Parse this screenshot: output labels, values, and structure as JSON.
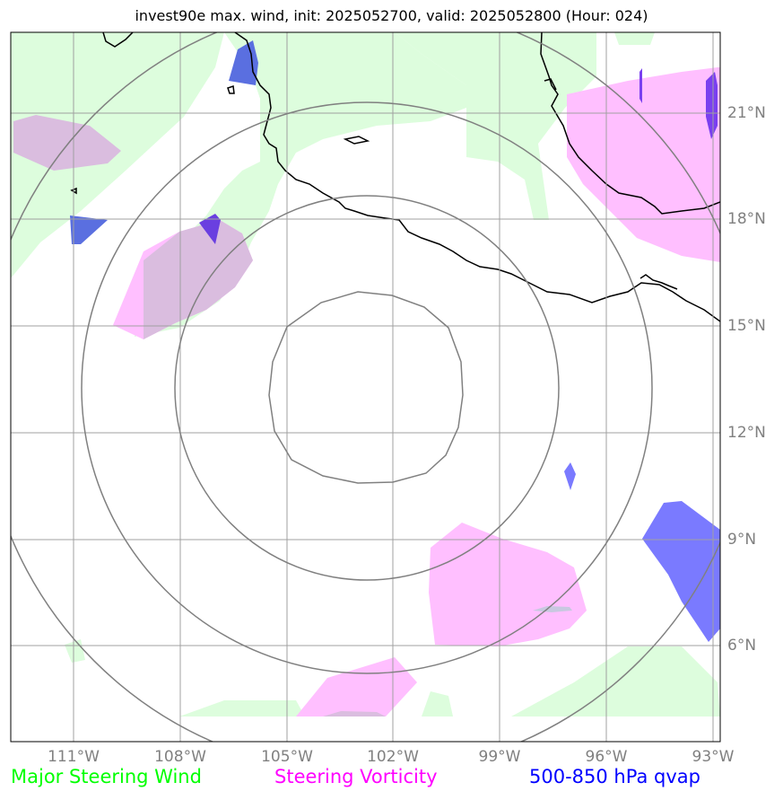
{
  "title": "invest90e max. wind, init: 2025052700, valid: 2025052800 (Hour: 024)",
  "lat_labels": [
    "21°N",
    "18°N",
    "15°N",
    "12°N",
    "9°N",
    "6°N"
  ],
  "lon_labels": [
    "111°W",
    "108°W",
    "105°W",
    "102°W",
    "99°W",
    "96°W",
    "93°W"
  ],
  "legend": {
    "wind": "Major Steering Wind",
    "vorticity": "Steering Vorticity",
    "qvap": "500-850 hPa qvap"
  },
  "colors": {
    "wind": "#00ff00",
    "wind_fill": "#ddfddd",
    "vorticity": "#ff00ff",
    "vorticity_fill": "#ffbfff",
    "qvap": "#0000ff",
    "qvap_fill": "#7a7aff",
    "grid": "#a0a0a0",
    "rings": "#808080"
  }
}
